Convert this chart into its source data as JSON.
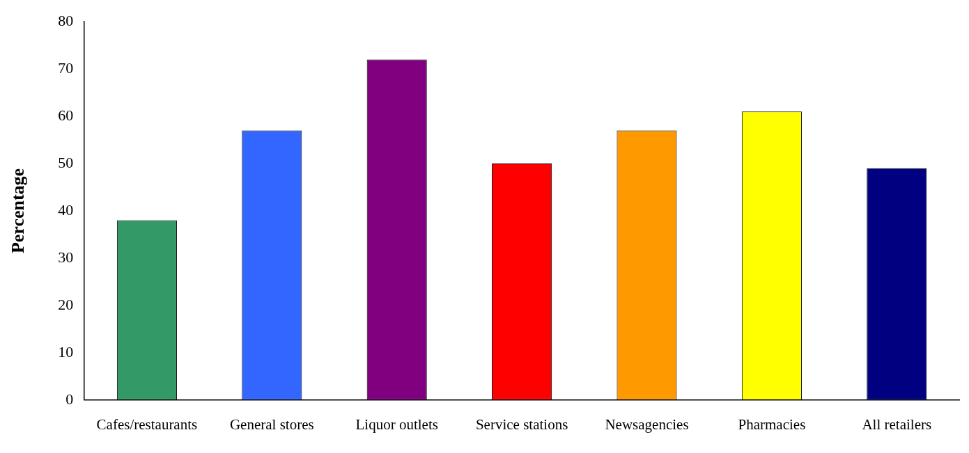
{
  "chart_data": {
    "type": "bar",
    "ylabel": "Percentage",
    "categories": [
      "Cafes/restaurants",
      "General stores",
      "Liquor outlets",
      "Service stations",
      "Newsagencies",
      "Pharmacies",
      "All retailers"
    ],
    "values": [
      38,
      57,
      72,
      50,
      57,
      61,
      49
    ],
    "colors": [
      "#339966",
      "#3366ff",
      "#800080",
      "#ff0000",
      "#ff9900",
      "#ffff00",
      "#000080"
    ],
    "ylim": [
      0,
      80
    ],
    "yticks": [
      0,
      10,
      20,
      30,
      40,
      50,
      60,
      70,
      80
    ],
    "grid": false,
    "legend": false
  }
}
